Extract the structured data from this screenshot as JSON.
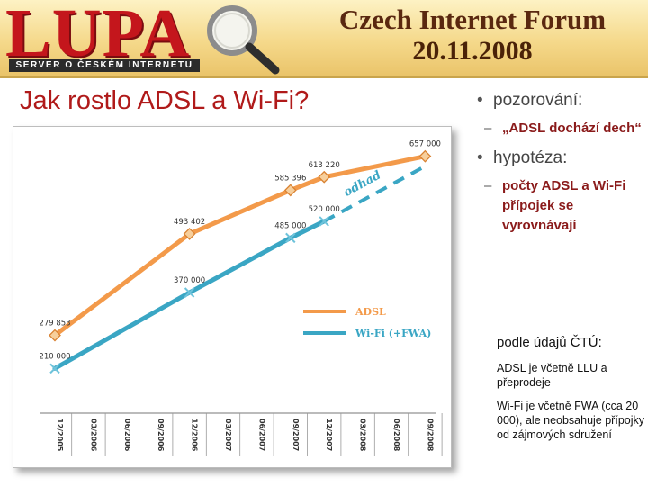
{
  "header": {
    "logo": "LUPA",
    "logo_subtitle": "SERVER O ČESKÉM INTERNETU",
    "event": "Czech Internet Forum",
    "date": "20.11.2008"
  },
  "slide": {
    "title": "Jak rostlo ADSL a Wi-Fi?"
  },
  "bullets": [
    {
      "label": "pozorování:",
      "sub": "„ADSL dochází dech“"
    },
    {
      "label": "hypotéza:",
      "sub": "počty ADSL a Wi-Fi přípojek se vyrovnávají"
    }
  ],
  "notes": {
    "title": "podle údajů ČTÚ:",
    "adsl": "ADSL je včetně LLU a přeprodeje",
    "wifi": "Wi-Fi je včetně FWA (cca 20 000), ale neobsahuje přípojky od zájmových sdružení"
  },
  "chart_data": {
    "type": "line",
    "title": "",
    "xlabel": "",
    "ylabel": "",
    "categories": [
      "12/2005",
      "03/2006",
      "06/2006",
      "09/2006",
      "12/2006",
      "03/2007",
      "06/2007",
      "09/2007",
      "12/2007",
      "03/2008",
      "06/2008",
      "09/2008"
    ],
    "ylim": [
      150000,
      700000
    ],
    "grid": false,
    "legend_position": "middle-right",
    "annotation": "odhad",
    "series": [
      {
        "name": "ADSL",
        "color": "#f39a4a",
        "marker": "diamond",
        "points": [
          {
            "x": "12/2005",
            "y": 279853,
            "label": "279 853"
          },
          {
            "x": "12/2006",
            "y": 493402,
            "label": "493 402"
          },
          {
            "x": "09/2007",
            "y": 585396,
            "label": "585 396"
          },
          {
            "x": "12/2007",
            "y": 613220,
            "label": "613 220"
          },
          {
            "x": "09/2008",
            "y": 657000,
            "label": "657 000"
          }
        ]
      },
      {
        "name": "Wi-Fi (+FWA)",
        "color": "#3aa6c4",
        "marker": "cross",
        "points": [
          {
            "x": "12/2005",
            "y": 210000,
            "label": "210 000"
          },
          {
            "x": "12/2006",
            "y": 370000,
            "label": "370 000"
          },
          {
            "x": "09/2007",
            "y": 485000,
            "label": "485 000"
          },
          {
            "x": "12/2007",
            "y": 520000,
            "label": "520 000"
          }
        ],
        "estimate": [
          {
            "x": "12/2007",
            "y": 520000
          },
          {
            "x": "09/2008",
            "y": 636000
          }
        ]
      }
    ]
  }
}
